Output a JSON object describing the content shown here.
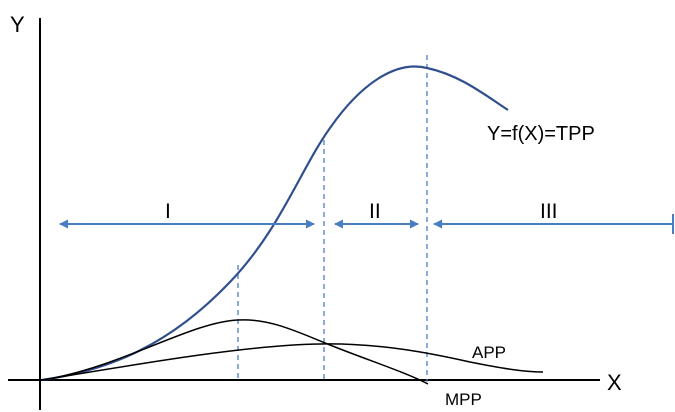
{
  "axes": {
    "y_label": "Y",
    "x_label": "X"
  },
  "curves": {
    "tpp_label": "Y=f(X)=TPP",
    "app_label": "APP",
    "mpp_label": "MPP"
  },
  "stages": {
    "stage_1": "I",
    "stage_2": "II",
    "stage_3": "III"
  },
  "colors": {
    "tpp_curve": "#2F4F8F",
    "stage_arrows": "#4A7EC2",
    "guide_lines": "#4A7EC2",
    "axes": "#000000",
    "app_mpp_curves": "#000000"
  }
}
